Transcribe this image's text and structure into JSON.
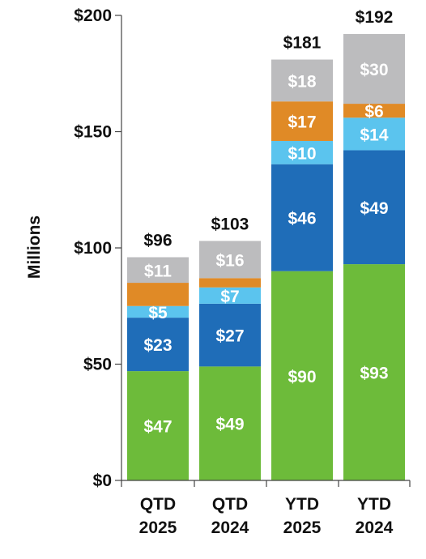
{
  "chart_data": {
    "type": "bar",
    "stacked": true,
    "ylabel": "Millions",
    "ylim": [
      0,
      200
    ],
    "yticks": [
      0,
      50,
      100,
      150,
      200
    ],
    "ytick_labels": [
      "$0",
      "$50",
      "$100",
      "$150",
      "$200"
    ],
    "categories": [
      [
        "QTD",
        "2025"
      ],
      [
        "QTD",
        "2024"
      ],
      [
        "YTD",
        "2025"
      ],
      [
        "YTD",
        "2024"
      ]
    ],
    "series": [
      {
        "color": "#6dbb3a",
        "values": [
          47,
          49,
          90,
          93
        ],
        "labels": [
          "$47",
          "$49",
          "$90",
          "$93"
        ]
      },
      {
        "color": "#1f6db8",
        "values": [
          23,
          27,
          46,
          49
        ],
        "labels": [
          "$23",
          "$27",
          "$46",
          "$49"
        ]
      },
      {
        "color": "#5bc4ee",
        "values": [
          5,
          7,
          10,
          14
        ],
        "labels": [
          "$5",
          "$7",
          "$10",
          "$14"
        ]
      },
      {
        "color": "#e08a26",
        "values": [
          10,
          4,
          17,
          6
        ],
        "labels": [
          "",
          "",
          "$17",
          "$6"
        ]
      },
      {
        "color": "#bcbcbe",
        "values": [
          11,
          16,
          18,
          30
        ],
        "labels": [
          "$11",
          "$16",
          "$18",
          "$30"
        ]
      }
    ],
    "totals": [
      96,
      103,
      181,
      192
    ],
    "total_labels": [
      "$96",
      "$103",
      "$181",
      "$192"
    ],
    "grid": false,
    "legend": "none"
  }
}
